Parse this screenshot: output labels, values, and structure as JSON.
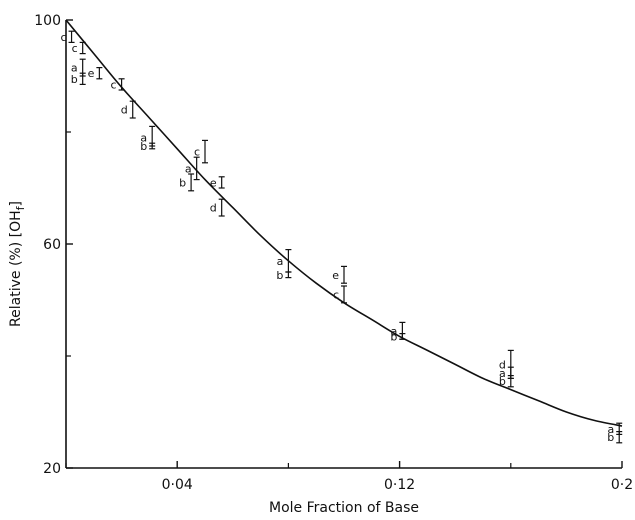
{
  "chart_data": {
    "type": "scatter",
    "title": "",
    "xlabel": "Mole Fraction of Base",
    "ylabel": "Relative (%) [OH",
    "ylabel_subscript": "f",
    "ylabel_close": "]",
    "xlim": [
      0.0,
      0.2
    ],
    "ylim": [
      20,
      100
    ],
    "x_ticks": [
      {
        "value": 0.04,
        "label": "0·04"
      },
      {
        "value": 0.12,
        "label": "0·12"
      },
      {
        "value": 0.2,
        "label": "0·2"
      }
    ],
    "x_minor_ticks": [
      0.0,
      0.08,
      0.16
    ],
    "y_ticks": [
      {
        "value": 20,
        "label": "20"
      },
      {
        "value": 60,
        "label": "60"
      },
      {
        "value": 100,
        "label": "100"
      }
    ],
    "y_minor_ticks": [
      40,
      80
    ],
    "grid": false,
    "fit_curve": {
      "x": [
        0.0,
        0.01,
        0.02,
        0.03,
        0.04,
        0.05,
        0.06,
        0.07,
        0.08,
        0.09,
        0.1,
        0.11,
        0.12,
        0.13,
        0.14,
        0.15,
        0.16,
        0.17,
        0.18,
        0.19,
        0.2
      ],
      "y": [
        100,
        94,
        88,
        82.5,
        77,
        71.5,
        66.5,
        61.5,
        57,
        53,
        49.5,
        46.5,
        43.5,
        41,
        38.5,
        36,
        34,
        32,
        30,
        28.5,
        27.5
      ]
    },
    "points": [
      {
        "label": "c",
        "x": 0.002,
        "y": 97,
        "lo": 96,
        "hi": 98
      },
      {
        "label": "c",
        "x": 0.006,
        "y": 95,
        "lo": 94,
        "hi": 96
      },
      {
        "label": "a",
        "x": 0.006,
        "y": 91.5,
        "lo": 90,
        "hi": 93
      },
      {
        "label": "b",
        "x": 0.006,
        "y": 89.5,
        "lo": 88.5,
        "hi": 90.5
      },
      {
        "label": "e",
        "x": 0.012,
        "y": 90.5,
        "lo": 89.5,
        "hi": 91.5
      },
      {
        "label": "c",
        "x": 0.02,
        "y": 88.5,
        "lo": 87.5,
        "hi": 89.5
      },
      {
        "label": "d",
        "x": 0.024,
        "y": 84,
        "lo": 82.5,
        "hi": 85.5
      },
      {
        "label": "a",
        "x": 0.031,
        "y": 79,
        "lo": 77.5,
        "hi": 81
      },
      {
        "label": "b",
        "x": 0.031,
        "y": 77.5,
        "lo": 77,
        "hi": 78
      },
      {
        "label": "c",
        "x": 0.05,
        "y": 76.5,
        "lo": 74.5,
        "hi": 78.5
      },
      {
        "label": "a",
        "x": 0.047,
        "y": 73.5,
        "lo": 71.5,
        "hi": 75.5
      },
      {
        "label": "b",
        "x": 0.045,
        "y": 71,
        "lo": 69.5,
        "hi": 72.5
      },
      {
        "label": "e",
        "x": 0.056,
        "y": 71,
        "lo": 70,
        "hi": 72
      },
      {
        "label": "d",
        "x": 0.056,
        "y": 66.5,
        "lo": 65,
        "hi": 68
      },
      {
        "label": "a",
        "x": 0.08,
        "y": 57,
        "lo": 55,
        "hi": 59
      },
      {
        "label": "b",
        "x": 0.08,
        "y": 54.5,
        "lo": 54,
        "hi": 55
      },
      {
        "label": "e",
        "x": 0.1,
        "y": 54.5,
        "lo": 53,
        "hi": 56
      },
      {
        "label": "c",
        "x": 0.1,
        "y": 51,
        "lo": 49.5,
        "hi": 52.5
      },
      {
        "label": "a",
        "x": 0.121,
        "y": 44.5,
        "lo": 43,
        "hi": 46
      },
      {
        "label": "b",
        "x": 0.121,
        "y": 43.5,
        "lo": 43,
        "hi": 44
      },
      {
        "label": "d",
        "x": 0.16,
        "y": 38.5,
        "lo": 36,
        "hi": 41
      },
      {
        "label": "a",
        "x": 0.16,
        "y": 37,
        "lo": 36,
        "hi": 38
      },
      {
        "label": "b",
        "x": 0.16,
        "y": 35.5,
        "lo": 34.5,
        "hi": 36.5
      },
      {
        "label": "a",
        "x": 0.199,
        "y": 27,
        "lo": 26,
        "hi": 28
      },
      {
        "label": "b",
        "x": 0.199,
        "y": 25.5,
        "lo": 24.5,
        "hi": 26.5
      }
    ],
    "colors": {
      "ink": "#111111",
      "background": "#ffffff"
    }
  }
}
